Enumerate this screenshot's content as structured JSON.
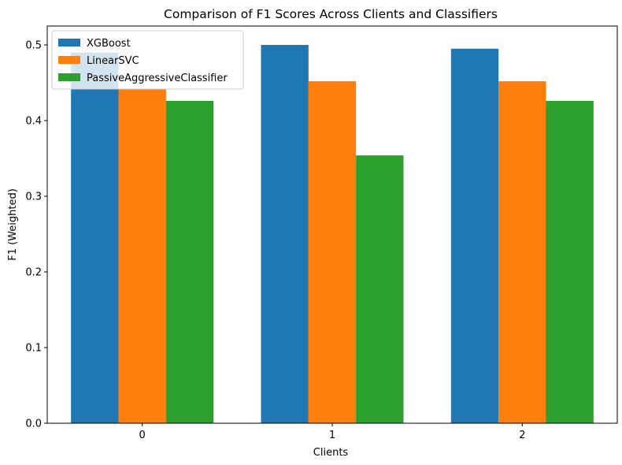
{
  "chart_data": {
    "type": "bar",
    "title": "Comparison of F1 Scores Across Clients and Classifiers",
    "xlabel": "Clients",
    "ylabel": "F1 (Weighted)",
    "categories": [
      "0",
      "1",
      "2"
    ],
    "ylim": [
      0,
      0.525
    ],
    "yticks": [
      "0.0",
      "0.1",
      "0.2",
      "0.3",
      "0.4",
      "0.5"
    ],
    "grid": false,
    "legend_position": "top-left",
    "series": [
      {
        "name": "XGBoost",
        "color": "#1f77b4",
        "values": [
          0.49,
          0.5,
          0.495
        ]
      },
      {
        "name": "LinearSVC",
        "color": "#ff7f0e",
        "values": [
          0.442,
          0.452,
          0.452
        ]
      },
      {
        "name": "PassiveAggressiveClassifier",
        "color": "#2ca02c",
        "values": [
          0.426,
          0.354,
          0.426
        ]
      }
    ]
  }
}
